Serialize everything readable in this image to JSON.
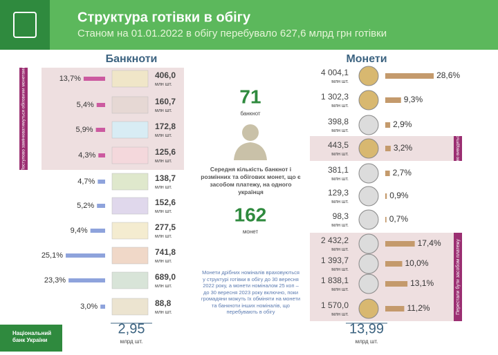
{
  "header": {
    "title": "Структура готівки в обігу",
    "subtitle": "Станом на 01.01.2022 в обігу перебувало 627,6 млрд грн готівки"
  },
  "banknotes": {
    "title": "Банкноти",
    "side_label": "Поступово замінюватимуться обіговими монетами",
    "unit": "млн шт.",
    "items": [
      {
        "share": 13.7,
        "share_label": "13,7%",
        "count": "406,0"
      },
      {
        "share": 5.4,
        "share_label": "5,4%",
        "count": "160,7"
      },
      {
        "share": 5.9,
        "share_label": "5,9%",
        "count": "172,8"
      },
      {
        "share": 4.3,
        "share_label": "4,3%",
        "count": "125,6"
      },
      {
        "share": 4.7,
        "share_label": "4,7%",
        "count": "138,7"
      },
      {
        "share": 5.2,
        "share_label": "5,2%",
        "count": "152,6"
      },
      {
        "share": 9.4,
        "share_label": "9,4%",
        "count": "277,5"
      },
      {
        "share": 25.1,
        "share_label": "25,1%",
        "count": "741,8"
      },
      {
        "share": 23.3,
        "share_label": "23,3%",
        "count": "689,0"
      },
      {
        "share": 3.0,
        "share_label": "3,0%",
        "count": "88,8"
      }
    ],
    "total": "2,95",
    "total_unit": "млрд шт."
  },
  "coins": {
    "title": "Монети",
    "unit": "млн шт.",
    "side_label_1": "Поступово виводяться з обігу",
    "side_label_2": "Перестали бути засобом платежу",
    "items": [
      {
        "share": 28.6,
        "share_label": "28,6%",
        "count": "4 004,1"
      },
      {
        "share": 9.3,
        "share_label": "9,3%",
        "count": "1 302,3"
      },
      {
        "share": 2.9,
        "share_label": "2,9%",
        "count": "398,8"
      },
      {
        "share": 3.2,
        "share_label": "3,2%",
        "count": "443,5"
      },
      {
        "share": 2.7,
        "share_label": "2,7%",
        "count": "381,1"
      },
      {
        "share": 0.9,
        "share_label": "0,9%",
        "count": "129,3"
      },
      {
        "share": 0.7,
        "share_label": "0,7%",
        "count": "98,3"
      },
      {
        "share": 17.4,
        "share_label": "17,4%",
        "count": "2 432,2"
      },
      {
        "share": 10.0,
        "share_label": "10,0%",
        "count": "1 393,7"
      },
      {
        "share": 13.1,
        "share_label": "13,1%",
        "count": "1 838,1"
      },
      {
        "share": 11.2,
        "share_label": "11,2%",
        "count": "1 570,0"
      }
    ],
    "total": "13,99",
    "total_unit": "млрд шт."
  },
  "center": {
    "banknotes_per_person": "71",
    "banknotes_word": "банкнот",
    "description": "Середня кількість банкнот і розмінних та обігових монет, що є засобом платежу, на одного українця",
    "coins_per_person": "162",
    "coins_word": "монет",
    "note": "Монети дрібних номіналів враховуються у структурі готівки в обігу до 30 вересня 2022 року, а монети номіналом 25 коп – до 30 вересня 2023 року включно, поки громадяни можуть їх обміняти на монети та банкноти інших номіналів, що перебувають в обігу"
  },
  "footer": {
    "logo_text": "Національний банк України"
  }
}
